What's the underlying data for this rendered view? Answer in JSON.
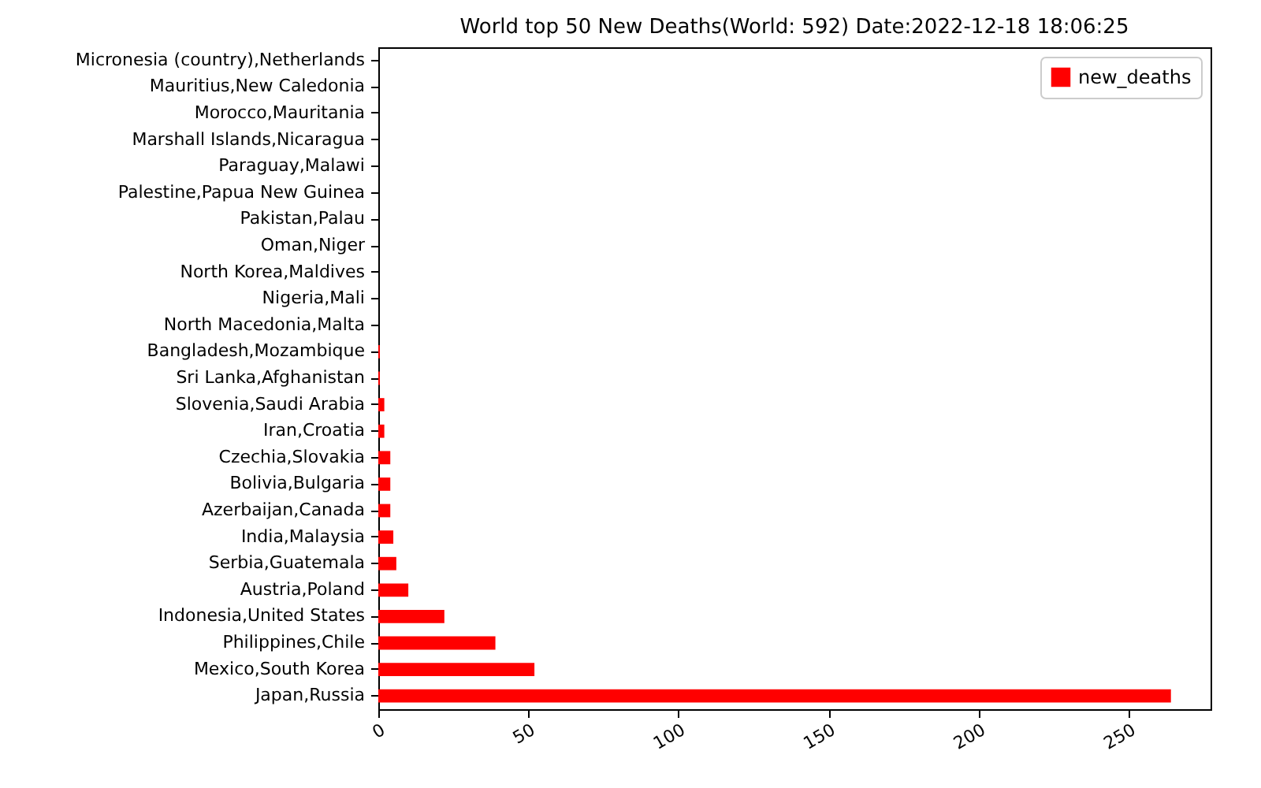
{
  "chart_data": {
    "type": "bar",
    "orientation": "horizontal",
    "title": "World top 50 New Deaths(World: 592) Date:2022-12-18 18:06:25",
    "categories": [
      "Micronesia (country),Netherlands",
      "Mauritius,New Caledonia",
      "Morocco,Mauritania",
      "Marshall Islands,Nicaragua",
      "Paraguay,Malawi",
      "Palestine,Papua New Guinea",
      "Pakistan,Palau",
      "Oman,Niger",
      "North Korea,Maldives",
      "Nigeria,Mali",
      "North Macedonia,Malta",
      "Bangladesh,Mozambique",
      "Sri Lanka,Afghanistan",
      "Slovenia,Saudi Arabia",
      "Iran,Croatia",
      "Czechia,Slovakia",
      "Bolivia,Bulgaria",
      "Azerbaijan,Canada",
      "India,Malaysia",
      "Serbia,Guatemala",
      "Austria,Poland",
      "Indonesia,United States",
      "Philippines,Chile",
      "Mexico,South Korea",
      "Japan,Russia"
    ],
    "series": [
      {
        "name": "new_deaths",
        "color": "#ff0000",
        "values": [
          0,
          0,
          0,
          0,
          0,
          0,
          0,
          0,
          0,
          0,
          0,
          0.5,
          0.5,
          2,
          2,
          4,
          4,
          4,
          5,
          6,
          10,
          22,
          39,
          52,
          264
        ]
      }
    ],
    "xlim": [
      0,
      277.2
    ],
    "xticks": [
      0,
      50,
      100,
      150,
      200,
      250
    ],
    "legend": "top right",
    "grid": false
  }
}
